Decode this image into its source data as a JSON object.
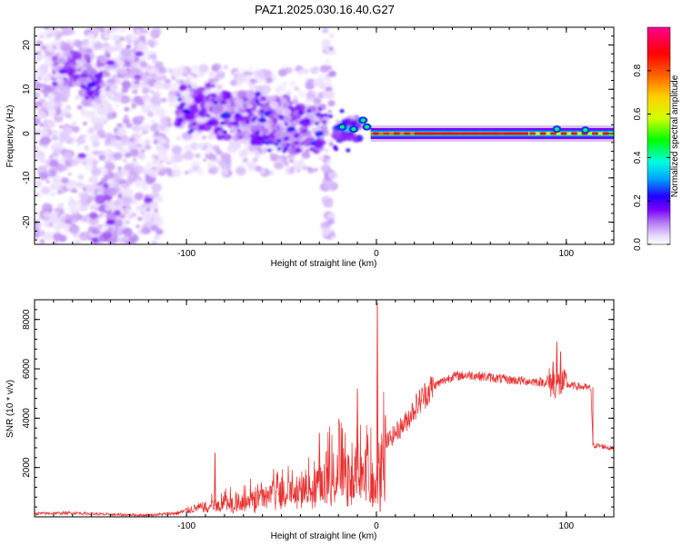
{
  "title": "PAZ1.2025.030.16.40.G27",
  "chart_data": [
    {
      "type": "heatmap",
      "id": "spectrogram",
      "xlabel": "Height of straight line (km)",
      "ylabel": "Frequency (Hz)",
      "xlim": [
        -180,
        125
      ],
      "ylim": [
        -25,
        24
      ],
      "xticks": [
        -100,
        0,
        100
      ],
      "yticks": [
        -20,
        -10,
        0,
        10,
        20
      ],
      "colorbar": {
        "label": "Normalized spectral amplitude",
        "range": [
          0.0,
          1.0
        ],
        "ticks": [
          0.0,
          0.2,
          0.4,
          0.6,
          0.8
        ],
        "colormap": [
          "#ffffff",
          "#e8d8ff",
          "#b27bf0",
          "#7a00ff",
          "#2200ff",
          "#00a0ff",
          "#00ffe0",
          "#00ff00",
          "#d0ff00",
          "#ffd000",
          "#ff6000",
          "#ff0000",
          "#ff0090"
        ]
      },
      "blobs": [
        {
          "x": -165,
          "y": 14,
          "a": 0.15
        },
        {
          "x": -150,
          "y": 11,
          "a": 0.2
        },
        {
          "x": -140,
          "y": 16,
          "a": 0.12
        },
        {
          "x": -125,
          "y": 18,
          "a": 0.1
        },
        {
          "x": -155,
          "y": -5,
          "a": 0.1
        },
        {
          "x": -140,
          "y": -20,
          "a": 0.12
        },
        {
          "x": -120,
          "y": -15,
          "a": 0.1
        },
        {
          "x": -100,
          "y": 5,
          "a": 0.2
        },
        {
          "x": -80,
          "y": 4,
          "a": 0.22
        },
        {
          "x": -60,
          "y": 3,
          "a": 0.2
        },
        {
          "x": -45,
          "y": 1,
          "a": 0.2
        },
        {
          "x": -30,
          "y": 0,
          "a": 0.22
        },
        {
          "x": -15,
          "y": 1,
          "a": 0.35
        },
        {
          "x": -8,
          "y": 3,
          "a": 0.3
        }
      ],
      "tone_line": {
        "freq": 0,
        "segments": [
          {
            "x0": -3,
            "x1": 20,
            "a": 0.82
          },
          {
            "x0": 20,
            "x1": 80,
            "a": 0.92
          },
          {
            "x0": 80,
            "x1": 125,
            "a": 0.7
          }
        ]
      }
    },
    {
      "type": "line",
      "id": "snr",
      "xlabel": "Height of straight line (km)",
      "ylabel": "SNR (10 * v/v)",
      "xlim": [
        -180,
        125
      ],
      "ylim": [
        0,
        8800
      ],
      "xticks": [
        -100,
        0,
        100
      ],
      "yticks": [
        2000,
        4000,
        6000,
        8000
      ],
      "color": "#e83030",
      "series": [
        {
          "name": "SNR",
          "x": [
            -180,
            -160,
            -140,
            -120,
            -105,
            -95,
            -85,
            -75,
            -65,
            -55,
            -45,
            -35,
            -25,
            -18,
            -15,
            -10,
            -5,
            -2,
            0,
            2,
            5,
            10,
            15,
            20,
            25,
            30,
            35,
            40,
            50,
            60,
            70,
            80,
            90,
            95,
            100,
            105,
            110,
            113,
            114,
            120,
            125
          ],
          "y": [
            130,
            160,
            90,
            70,
            150,
            350,
            450,
            550,
            700,
            850,
            1000,
            1250,
            1600,
            1900,
            1950,
            1900,
            1800,
            1600,
            1300,
            2000,
            3000,
            3400,
            3800,
            4400,
            4900,
            5300,
            5500,
            5700,
            5750,
            5650,
            5550,
            5500,
            5450,
            5400,
            5350,
            5300,
            5250,
            5200,
            2900,
            2850,
            2750
          ]
        }
      ],
      "spikes": [
        {
          "x": 0.5,
          "y": 8700
        },
        {
          "x": -2,
          "y": 400
        },
        {
          "x": 2,
          "y": 200
        },
        {
          "x": 95,
          "y": 7100
        },
        {
          "x": 97,
          "y": 6700
        },
        {
          "x": 93,
          "y": 6300
        },
        {
          "x": -85,
          "y": 2600
        },
        {
          "x": -30,
          "y": 3400
        },
        {
          "x": -18,
          "y": 3600
        },
        {
          "x": -10,
          "y": 5200
        }
      ]
    }
  ]
}
